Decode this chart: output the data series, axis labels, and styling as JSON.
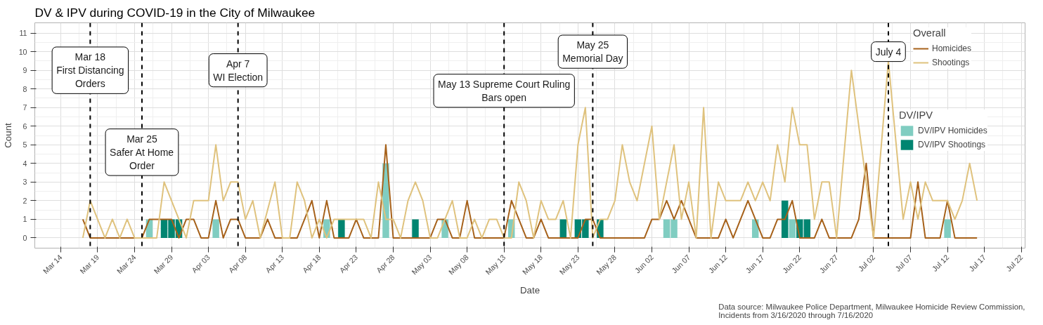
{
  "chart_data": {
    "type": "line",
    "title": "DV & IPV during COVID-19 in the City of Milwaukee",
    "xlabel": "Date",
    "ylabel": "Count",
    "legend_title": [
      "Overall",
      "DV/IPV"
    ],
    "legend": "right",
    "grid": true,
    "xlim": [
      "2020-03-10T12:00",
      "2020-07-22T12:00"
    ],
    "ylim": [
      -0.55,
      11.55
    ],
    "xticks": [
      {
        "value": "2020-03-14",
        "label": "Mar 14"
      },
      {
        "value": "2020-03-19",
        "label": "Mar 19"
      },
      {
        "value": "2020-03-24",
        "label": "Mar 24"
      },
      {
        "value": "2020-03-29",
        "label": "Mar 29"
      },
      {
        "value": "2020-04-03",
        "label": "Apr 03"
      },
      {
        "value": "2020-04-08",
        "label": "Apr 08"
      },
      {
        "value": "2020-04-13",
        "label": "Apr 13"
      },
      {
        "value": "2020-04-18",
        "label": "Apr 18"
      },
      {
        "value": "2020-04-23",
        "label": "Apr 23"
      },
      {
        "value": "2020-04-28",
        "label": "Apr 28"
      },
      {
        "value": "2020-05-03",
        "label": "May 03"
      },
      {
        "value": "2020-05-08",
        "label": "May 08"
      },
      {
        "value": "2020-05-13",
        "label": "May 13"
      },
      {
        "value": "2020-05-18",
        "label": "May 18"
      },
      {
        "value": "2020-05-23",
        "label": "May 23"
      },
      {
        "value": "2020-05-28",
        "label": "May 28"
      },
      {
        "value": "2020-06-02",
        "label": "Jun 02"
      },
      {
        "value": "2020-06-07",
        "label": "Jun 07"
      },
      {
        "value": "2020-06-12",
        "label": "Jun 12"
      },
      {
        "value": "2020-06-17",
        "label": "Jun 17"
      },
      {
        "value": "2020-06-22",
        "label": "Jun 22"
      },
      {
        "value": "2020-06-27",
        "label": "Jun 27"
      },
      {
        "value": "2020-07-02",
        "label": "Jul 02"
      },
      {
        "value": "2020-07-07",
        "label": "Jul 07"
      },
      {
        "value": "2020-07-12",
        "label": "Jul 12"
      },
      {
        "value": "2020-07-17",
        "label": "Jul 17"
      },
      {
        "value": "2020-07-22",
        "label": "Jul 22"
      }
    ],
    "yticks": [
      0,
      1,
      2,
      3,
      4,
      5,
      6,
      7,
      8,
      9,
      10,
      11
    ],
    "ref_lines": [
      {
        "axis": "x",
        "value": "2020-03-18",
        "label": "Mar 18\nFirst Distancing\nOrders",
        "color": "#000000",
        "line_style": "dashed"
      },
      {
        "axis": "x",
        "value": "2020-03-25",
        "label": "Mar 25\nSafer At Home\nOrder",
        "color": "#000000",
        "line_style": "dashed"
      },
      {
        "axis": "x",
        "value": "2020-04-07",
        "label": "Apr 7\nWI Election",
        "color": "#000000",
        "line_style": "dashed"
      },
      {
        "axis": "x",
        "value": "2020-05-13",
        "label": "May 13 Supreme Court Ruling\nBars open",
        "color": "#000000",
        "line_style": "dashed"
      },
      {
        "axis": "x",
        "value": "2020-05-25",
        "label": "May 25\nMemorial Day",
        "color": "#000000",
        "line_style": "dashed"
      },
      {
        "axis": "x",
        "value": "2020-07-04",
        "label": "July 4",
        "color": "#000000",
        "line_style": "dashed"
      }
    ],
    "annotations": [
      "Data source: Milwaukee Police Department, Milwaukee Homicide Review Commission,\nIncidents from 3/16/2020 through 7/16/2020"
    ],
    "series": [
      {
        "name": "DV/IPV Homicides",
        "type": "bar",
        "color": "#80cdc1",
        "x": [
          "2020-03-26",
          "2020-04-04",
          "2020-04-19",
          "2020-04-27",
          "2020-05-05",
          "2020-05-14",
          "2020-06-04",
          "2020-06-05",
          "2020-06-16",
          "2020-06-21",
          "2020-07-12"
        ],
        "values": [
          1,
          1,
          1,
          4,
          1,
          1,
          1,
          1,
          1,
          1,
          1
        ]
      },
      {
        "name": "DV/IPV Shootings",
        "type": "bar",
        "color": "#018571",
        "x": [
          "2020-03-28",
          "2020-03-29",
          "2020-03-30",
          "2020-04-21",
          "2020-05-01",
          "2020-05-21",
          "2020-05-23",
          "2020-05-24",
          "2020-05-26",
          "2020-06-20",
          "2020-06-22",
          "2020-06-23"
        ],
        "values": [
          1,
          1,
          1,
          1,
          1,
          1,
          1,
          1,
          1,
          2,
          1,
          1
        ]
      },
      {
        "name": "Homicides",
        "color": "#a6611a",
        "x": [
          "2020-03-17",
          "2020-03-18",
          "2020-03-19",
          "2020-03-20",
          "2020-03-21",
          "2020-03-22",
          "2020-03-23",
          "2020-03-24",
          "2020-03-25",
          "2020-03-26",
          "2020-03-27",
          "2020-03-28",
          "2020-03-29",
          "2020-03-30",
          "2020-03-31",
          "2020-04-01",
          "2020-04-02",
          "2020-04-03",
          "2020-04-04",
          "2020-04-05",
          "2020-04-06",
          "2020-04-07",
          "2020-04-08",
          "2020-04-09",
          "2020-04-10",
          "2020-04-11",
          "2020-04-12",
          "2020-04-13",
          "2020-04-14",
          "2020-04-15",
          "2020-04-17",
          "2020-04-18",
          "2020-04-19",
          "2020-04-20",
          "2020-04-21",
          "2020-04-22",
          "2020-04-23",
          "2020-04-24",
          "2020-04-25",
          "2020-04-26",
          "2020-04-27",
          "2020-04-28",
          "2020-04-29",
          "2020-04-30",
          "2020-05-01",
          "2020-05-02",
          "2020-05-03",
          "2020-05-04",
          "2020-05-05",
          "2020-05-06",
          "2020-05-07",
          "2020-05-08",
          "2020-05-09",
          "2020-05-10",
          "2020-05-11",
          "2020-05-12",
          "2020-05-13",
          "2020-05-14",
          "2020-05-15",
          "2020-05-16",
          "2020-05-17",
          "2020-05-18",
          "2020-05-19",
          "2020-05-20",
          "2020-05-21",
          "2020-05-22",
          "2020-05-23",
          "2020-05-24",
          "2020-05-25",
          "2020-05-26",
          "2020-05-27",
          "2020-05-28",
          "2020-05-29",
          "2020-05-30",
          "2020-05-31",
          "2020-06-01",
          "2020-06-02",
          "2020-06-03",
          "2020-06-04",
          "2020-06-05",
          "2020-06-06",
          "2020-06-07",
          "2020-06-08",
          "2020-06-09",
          "2020-06-10",
          "2020-06-11",
          "2020-06-12",
          "2020-06-13",
          "2020-06-14",
          "2020-06-15",
          "2020-06-16",
          "2020-06-17",
          "2020-06-18",
          "2020-06-19",
          "2020-06-20",
          "2020-06-21",
          "2020-06-22",
          "2020-06-23",
          "2020-06-24",
          "2020-06-25",
          "2020-06-26",
          "2020-06-27",
          "2020-06-28",
          "2020-06-29",
          "2020-06-30",
          "2020-07-01",
          "2020-07-02",
          "2020-07-03",
          "2020-07-04",
          "2020-07-05",
          "2020-07-06",
          "2020-07-07",
          "2020-07-08",
          "2020-07-09",
          "2020-07-10",
          "2020-07-11",
          "2020-07-12",
          "2020-07-13",
          "2020-07-14",
          "2020-07-15",
          "2020-07-16"
        ],
        "values": [
          1,
          0,
          0,
          0,
          0,
          0,
          0,
          0,
          0,
          1,
          1,
          1,
          1,
          0,
          1,
          1,
          0,
          0,
          2,
          0,
          1,
          1,
          0,
          0,
          0,
          1,
          0,
          0,
          0,
          0,
          2,
          0,
          2,
          0,
          0,
          0,
          1,
          0,
          0,
          0,
          5,
          0,
          0,
          0,
          0,
          0,
          0,
          1,
          1,
          0,
          0,
          2,
          0,
          0,
          0,
          0,
          0,
          2,
          1,
          0,
          0,
          1,
          0,
          0,
          0,
          0,
          0,
          1,
          1,
          0,
          0,
          0,
          0,
          0,
          0,
          0,
          1,
          1,
          2,
          1,
          2,
          1,
          0,
          0,
          0,
          0,
          1,
          0,
          1,
          2,
          1,
          0,
          0,
          1,
          1,
          2,
          0,
          0,
          0,
          1,
          0,
          0,
          0,
          0,
          1,
          4,
          0,
          0,
          0,
          0,
          0,
          0,
          3,
          0,
          0,
          0,
          2,
          0,
          0,
          0,
          0
        ]
      },
      {
        "name": "Shootings",
        "color": "#dfc27d",
        "x": [
          "2020-03-17",
          "2020-03-18",
          "2020-03-19",
          "2020-03-20",
          "2020-03-21",
          "2020-03-22",
          "2020-03-23",
          "2020-03-24",
          "2020-03-25",
          "2020-03-26",
          "2020-03-27",
          "2020-03-28",
          "2020-03-31",
          "2020-04-01",
          "2020-04-02",
          "2020-04-03",
          "2020-04-04",
          "2020-04-05",
          "2020-04-06",
          "2020-04-07",
          "2020-04-08",
          "2020-04-09",
          "2020-04-10",
          "2020-04-12",
          "2020-04-13",
          "2020-04-14",
          "2020-04-15",
          "2020-04-16",
          "2020-04-17",
          "2020-04-18",
          "2020-04-19",
          "2020-04-20",
          "2020-04-21",
          "2020-04-22",
          "2020-04-23",
          "2020-04-24",
          "2020-04-25",
          "2020-04-26",
          "2020-04-27",
          "2020-04-28",
          "2020-04-29",
          "2020-04-30",
          "2020-05-01",
          "2020-05-02",
          "2020-05-03",
          "2020-05-04",
          "2020-05-06",
          "2020-05-07",
          "2020-05-08",
          "2020-05-09",
          "2020-05-10",
          "2020-05-11",
          "2020-05-12",
          "2020-05-13",
          "2020-05-14",
          "2020-05-15",
          "2020-05-16",
          "2020-05-17",
          "2020-05-18",
          "2020-05-19",
          "2020-05-20",
          "2020-05-21",
          "2020-05-22",
          "2020-05-23",
          "2020-05-24",
          "2020-05-25",
          "2020-05-26",
          "2020-05-27",
          "2020-05-28",
          "2020-05-29",
          "2020-05-30",
          "2020-05-31",
          "2020-06-02",
          "2020-06-03",
          "2020-06-05",
          "2020-06-06",
          "2020-06-07",
          "2020-06-08",
          "2020-06-09",
          "2020-06-10",
          "2020-06-11",
          "2020-06-12",
          "2020-06-13",
          "2020-06-14",
          "2020-06-15",
          "2020-06-16",
          "2020-06-17",
          "2020-06-18",
          "2020-06-19",
          "2020-06-20",
          "2020-06-21",
          "2020-06-22",
          "2020-06-23",
          "2020-06-24",
          "2020-06-25",
          "2020-06-26",
          "2020-06-27",
          "2020-06-29",
          "2020-07-01",
          "2020-07-02",
          "2020-07-04",
          "2020-07-06",
          "2020-07-07",
          "2020-07-08",
          "2020-07-09",
          "2020-07-10",
          "2020-07-11",
          "2020-07-12",
          "2020-07-13",
          "2020-07-14",
          "2020-07-15",
          "2020-07-16"
        ],
        "values": [
          0,
          2,
          1,
          0,
          1,
          0,
          1,
          0,
          0,
          0,
          0,
          3,
          0,
          2,
          2,
          2,
          5,
          2,
          3,
          3,
          1,
          2,
          0,
          3,
          0,
          0,
          3,
          2,
          0,
          1,
          0,
          1,
          1,
          1,
          1,
          1,
          0,
          3,
          1,
          1,
          0,
          2,
          3,
          2,
          0,
          0,
          2,
          0,
          0,
          1,
          0,
          1,
          1,
          0,
          0,
          3,
          2,
          0,
          2,
          1,
          1,
          2,
          0,
          5,
          7,
          0,
          1,
          1,
          2,
          5,
          3,
          2,
          6,
          1,
          5,
          1,
          3,
          0,
          7,
          0,
          3,
          2,
          2,
          2,
          3,
          2,
          3,
          2,
          5,
          3,
          7,
          5,
          5,
          1,
          3,
          3,
          0,
          9,
          3,
          0,
          9.5,
          1,
          3,
          1,
          3,
          2,
          2,
          2,
          1,
          2,
          4,
          2
        ]
      }
    ]
  }
}
